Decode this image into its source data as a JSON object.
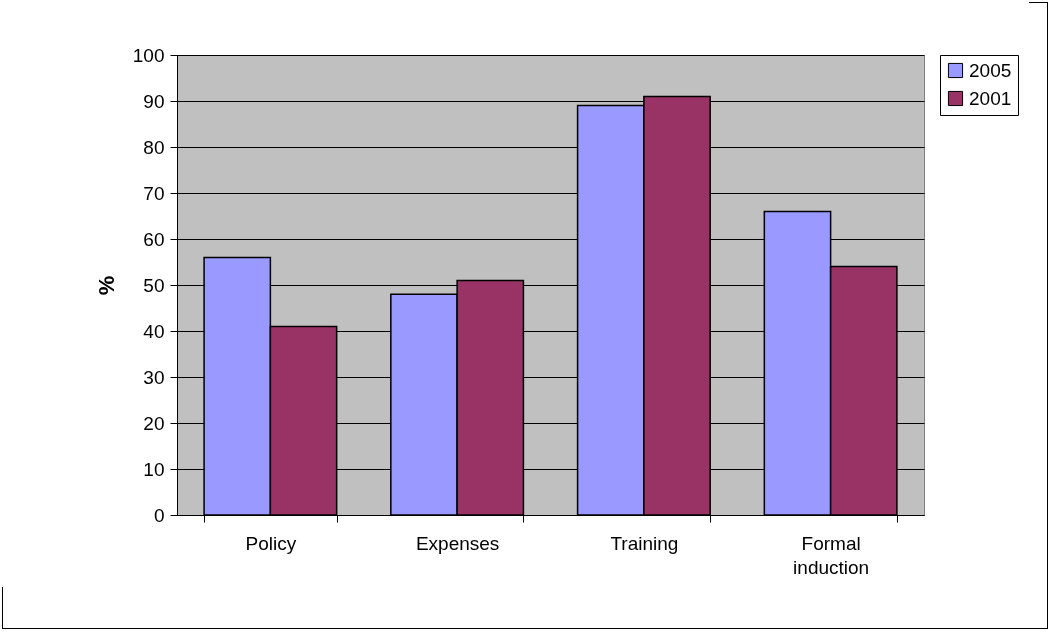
{
  "chart_data": {
    "type": "bar",
    "ylabel": "%",
    "categories": [
      "Policy",
      "Expenses",
      "Training",
      "Formal induction"
    ],
    "series": [
      {
        "name": "2005",
        "color": "#9999ff",
        "values": [
          56,
          48,
          89,
          66
        ]
      },
      {
        "name": "2001",
        "color": "#993366",
        "values": [
          41,
          51,
          91,
          54
        ]
      }
    ],
    "ylim": [
      0,
      100
    ],
    "yticks": [
      0,
      10,
      20,
      30,
      40,
      50,
      60,
      70,
      80,
      90,
      100
    ],
    "grid": "y",
    "legend": "right"
  }
}
